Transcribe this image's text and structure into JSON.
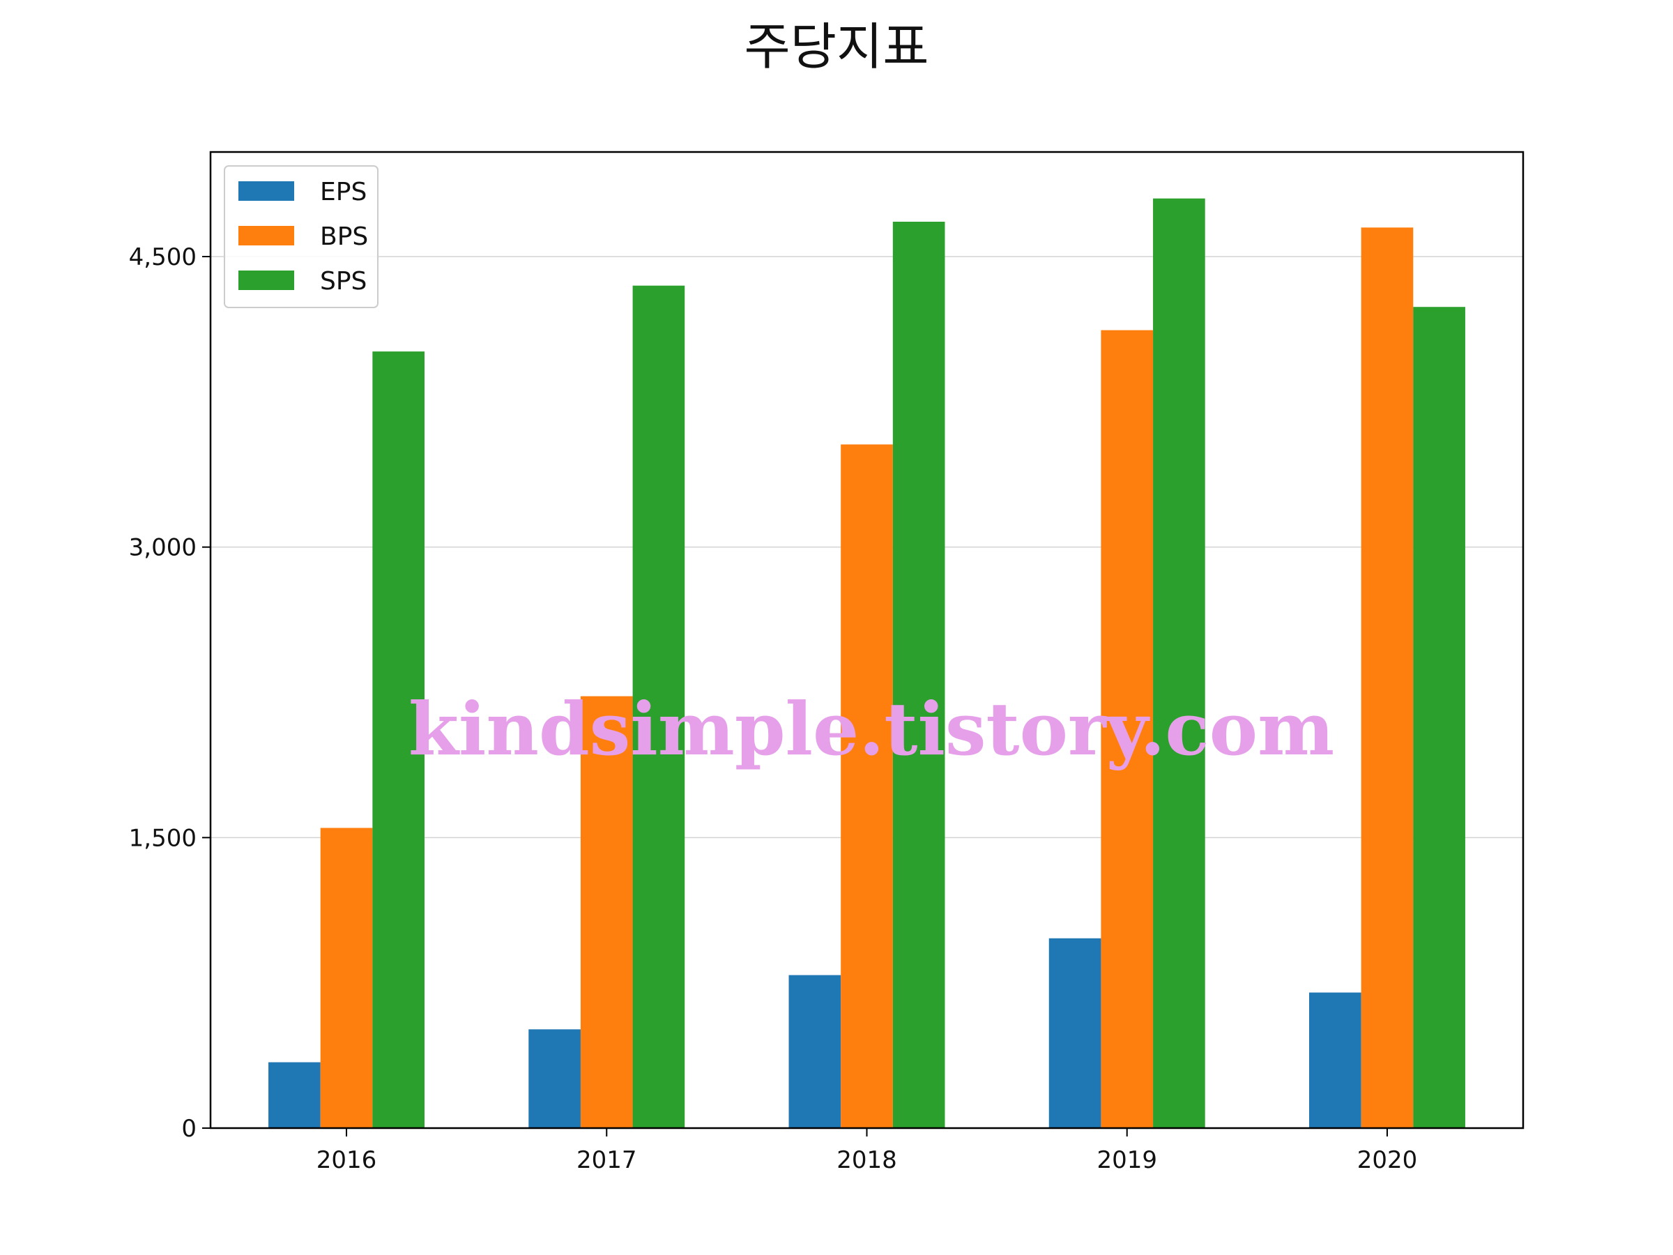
{
  "chart_data": {
    "type": "bar",
    "title": "주당지표",
    "xlabel": "",
    "ylabel": "",
    "categories": [
      "2016",
      "2017",
      "2018",
      "2019",
      "2020"
    ],
    "series": [
      {
        "name": "EPS",
        "color": "#1f77b4",
        "values": [
          340,
          510,
          790,
          980,
          700
        ]
      },
      {
        "name": "BPS",
        "color": "#ff7f0e",
        "values": [
          1550,
          2230,
          3530,
          4120,
          4650
        ]
      },
      {
        "name": "SPS",
        "color": "#2ca02c",
        "values": [
          4010,
          4350,
          4680,
          4800,
          4240
        ]
      }
    ],
    "ylim": [
      0,
      5040
    ],
    "yticks": [
      0,
      1500,
      3000,
      4500
    ],
    "ytick_labels": [
      "0",
      "1,500",
      "3,000",
      "4,500"
    ],
    "grid": "horizontal",
    "legend_position": "upper-left"
  },
  "watermark": "kindsimple.tistory.com"
}
